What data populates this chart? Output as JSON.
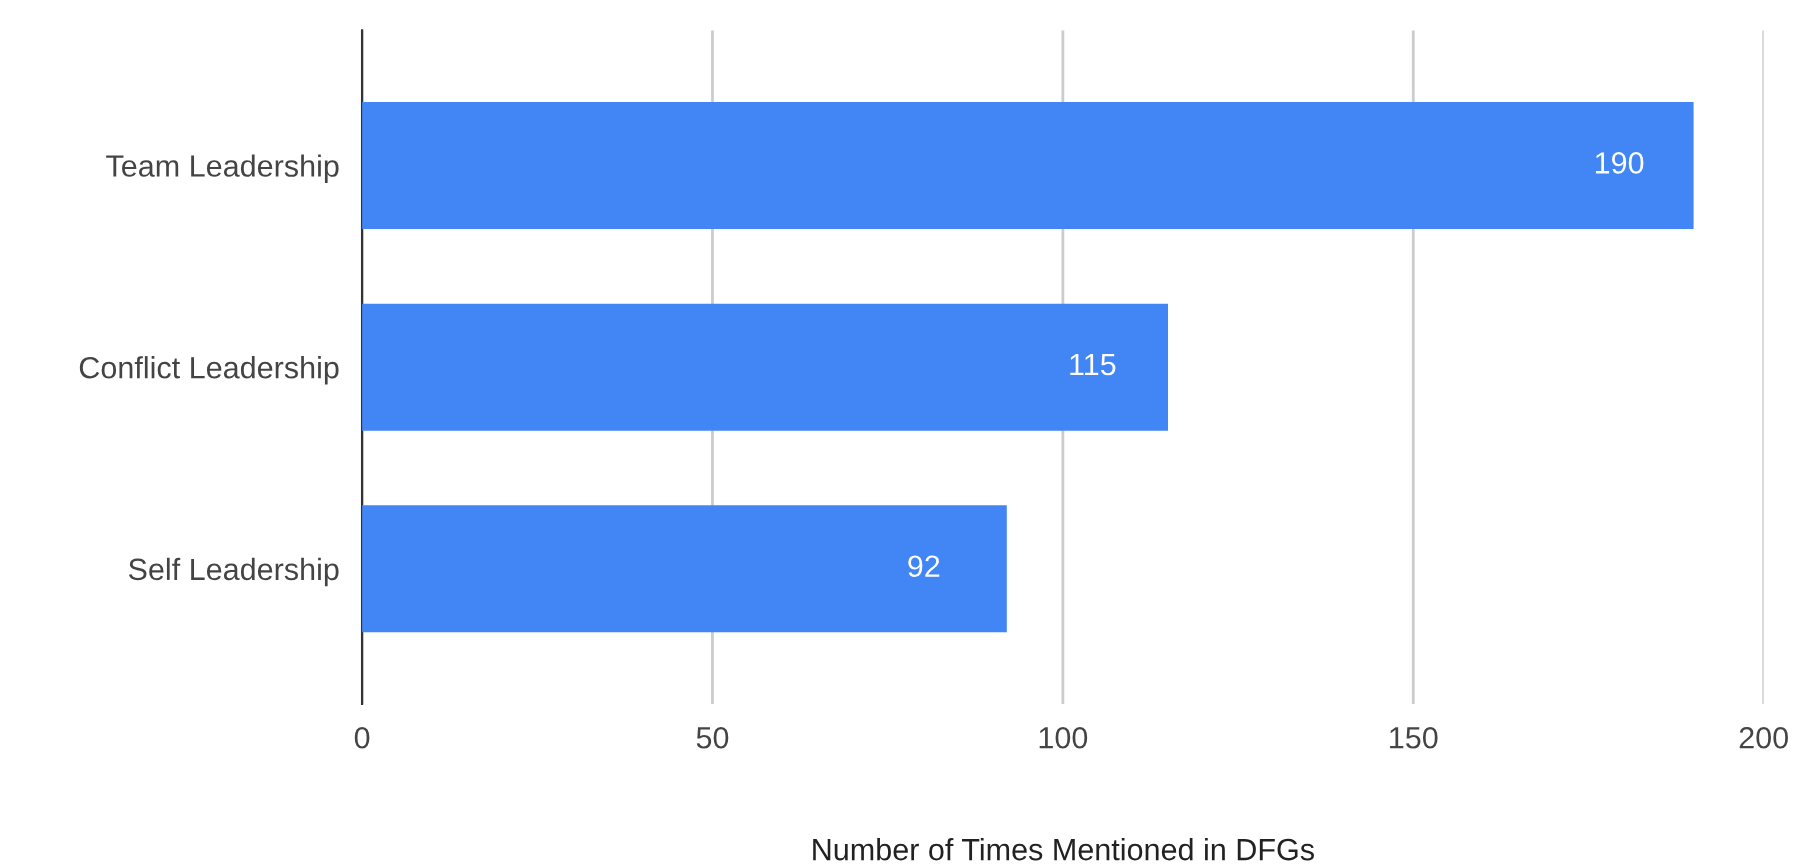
{
  "chart_data": {
    "type": "bar",
    "orientation": "horizontal",
    "xlabel": "Number of Times Mentioned in DFGs",
    "categories": [
      "Team Leadership",
      "Conflict Leadership",
      "Self Leadership"
    ],
    "values": [
      190,
      115,
      92
    ],
    "color": "#4285f4",
    "data_labels": true,
    "xlim": [
      0,
      200
    ],
    "xticks": [
      0,
      50,
      100,
      150,
      200
    ],
    "grid": "x",
    "legend": false
  }
}
